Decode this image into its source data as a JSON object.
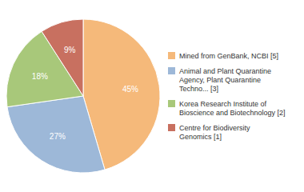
{
  "chart_data": {
    "type": "pie",
    "categories": [
      "Mined from GenBank, NCBI [5]",
      "Animal and Plant Quarantine\nAgency, Plant Quarantine\nTechno... [3]",
      "Korea Research Institute of\nBioscience and Biotechnology [2]",
      "Centre for Biodiversity\nGenomics [1]"
    ],
    "values": [
      45,
      27,
      18,
      9
    ],
    "value_labels": [
      "45%",
      "27%",
      "18%",
      "9%"
    ],
    "colors": [
      "#f5b97a",
      "#9db8d8",
      "#a8c87a",
      "#c87060"
    ],
    "data_labels": true,
    "legend": "right"
  }
}
